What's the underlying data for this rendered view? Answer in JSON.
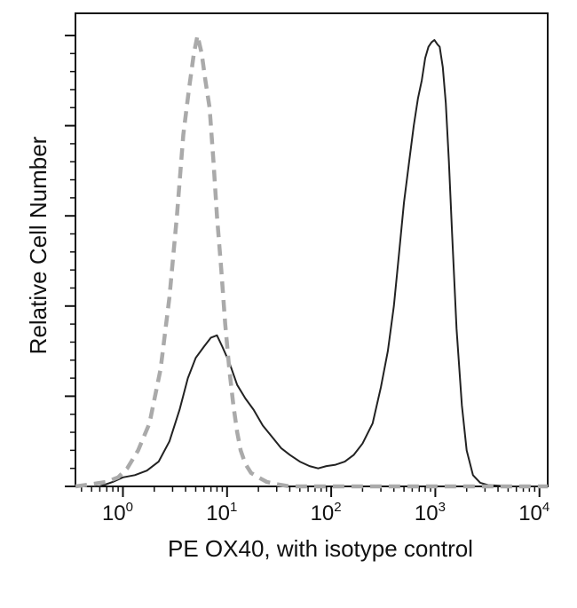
{
  "chart_data": {
    "type": "line",
    "title": "",
    "xlabel": "PE OX40, with isotype control",
    "ylabel": "Relative Cell Number",
    "x_scale": "log",
    "xlim": [
      0.35,
      12000
    ],
    "ylim": [
      0,
      1.0
    ],
    "x_ticks": [
      {
        "value": 1,
        "base": "10",
        "exp": "0"
      },
      {
        "value": 10,
        "base": "10",
        "exp": "1"
      },
      {
        "value": 100,
        "base": "10",
        "exp": "2"
      },
      {
        "value": 1000,
        "base": "10",
        "exp": "3"
      },
      {
        "value": 10000,
        "base": "10",
        "exp": "4"
      }
    ],
    "grid": false,
    "legend": "none",
    "series": [
      {
        "style": "solid",
        "color": "#222222",
        "x": [
          0.35,
          0.45,
          0.6,
          0.8,
          1.0,
          1.3,
          1.7,
          2.2,
          2.8,
          3.5,
          4.2,
          5.0,
          6.0,
          7.0,
          8.0,
          9.0,
          10.5,
          12.5,
          15,
          18,
          22,
          27,
          33,
          40,
          50,
          62,
          75,
          90,
          110,
          135,
          165,
          200,
          250,
          300,
          350,
          400,
          450,
          500,
          560,
          620,
          680,
          740,
          800,
          860,
          920,
          980,
          1050,
          1100,
          1180,
          1260,
          1350,
          1450,
          1600,
          1800,
          2000,
          2300,
          2700,
          3200,
          3800,
          5000,
          7000,
          12000
        ],
        "y": [
          0.0,
          0.0,
          0.0,
          0.01,
          0.02,
          0.025,
          0.035,
          0.055,
          0.1,
          0.17,
          0.24,
          0.285,
          0.31,
          0.33,
          0.335,
          0.31,
          0.275,
          0.225,
          0.195,
          0.17,
          0.135,
          0.11,
          0.085,
          0.07,
          0.055,
          0.045,
          0.04,
          0.045,
          0.048,
          0.055,
          0.07,
          0.095,
          0.14,
          0.22,
          0.3,
          0.4,
          0.52,
          0.63,
          0.72,
          0.8,
          0.86,
          0.9,
          0.95,
          0.975,
          0.985,
          0.99,
          0.98,
          0.975,
          0.93,
          0.85,
          0.72,
          0.56,
          0.35,
          0.18,
          0.08,
          0.025,
          0.008,
          0.003,
          0.002,
          0.0,
          0.0,
          0.0
        ]
      },
      {
        "style": "dashed",
        "color": "#aaaaaa",
        "x": [
          0.35,
          0.5,
          0.7,
          0.9,
          1.1,
          1.4,
          1.8,
          2.3,
          2.8,
          3.3,
          3.8,
          4.3,
          4.8,
          5.2,
          5.7,
          6.2,
          6.8,
          7.4,
          8.0,
          8.8,
          9.6,
          10.5,
          11.5,
          12.5,
          13.5,
          15,
          17,
          20,
          24,
          30,
          40,
          60,
          100,
          300,
          1000,
          12000
        ],
        "y": [
          0.0,
          0.005,
          0.01,
          0.02,
          0.04,
          0.08,
          0.14,
          0.26,
          0.42,
          0.6,
          0.78,
          0.88,
          0.96,
          1.0,
          0.96,
          0.9,
          0.84,
          0.72,
          0.6,
          0.48,
          0.36,
          0.26,
          0.18,
          0.12,
          0.08,
          0.05,
          0.03,
          0.02,
          0.01,
          0.005,
          0.0,
          0.0,
          0.0,
          0.0,
          0.0,
          0.0
        ]
      }
    ]
  }
}
